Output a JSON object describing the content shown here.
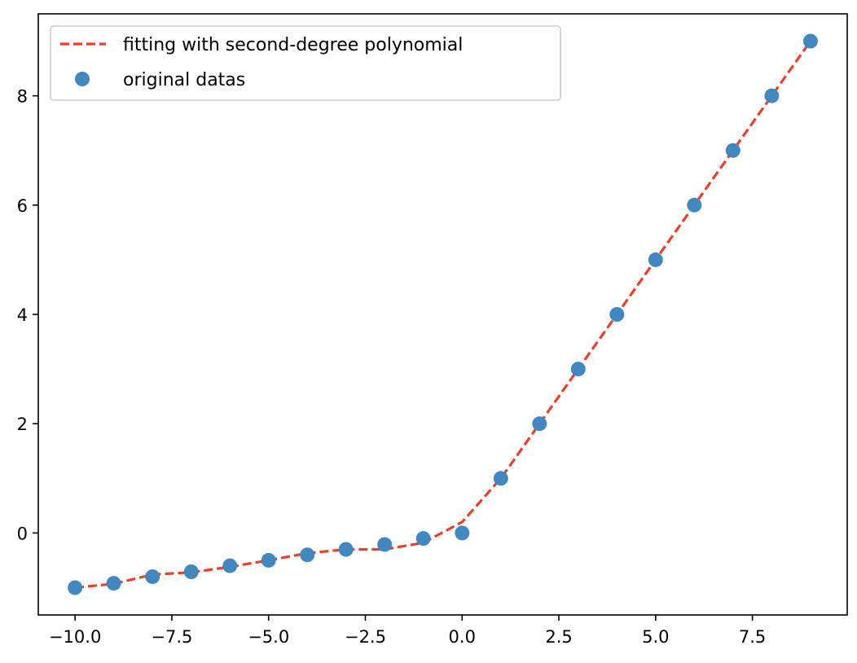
{
  "chart_data": {
    "type": "scatter",
    "title": "",
    "xlabel": "",
    "ylabel": "",
    "xlim": [
      -10.95,
      9.95
    ],
    "ylim": [
      -1.5,
      9.5
    ],
    "xticks": [
      -10.0,
      -7.5,
      -5.0,
      -2.5,
      0.0,
      2.5,
      5.0,
      7.5
    ],
    "xtick_labels": [
      "−10.0",
      "−7.5",
      "−5.0",
      "−2.5",
      "0.0",
      "2.5",
      "5.0",
      "7.5"
    ],
    "yticks": [
      0,
      2,
      4,
      6,
      8
    ],
    "ytick_labels": [
      "0",
      "2",
      "4",
      "6",
      "8"
    ],
    "grid": false,
    "legend_position": "top-left",
    "series": [
      {
        "name": "fitting with second-degree polynomial",
        "kind": "line",
        "style": "dashed",
        "color": "#e8402a",
        "x": [
          -10,
          -9,
          -8,
          -7,
          -6,
          -5,
          -4,
          -3,
          -2,
          -1,
          0,
          1,
          2,
          3,
          4,
          5,
          6,
          7,
          8,
          9
        ],
        "y": [
          -1.0,
          -0.93,
          -0.76,
          -0.72,
          -0.62,
          -0.5,
          -0.37,
          -0.3,
          -0.3,
          -0.18,
          0.2,
          1.0,
          2.0,
          3.0,
          4.0,
          5.0,
          6.0,
          7.0,
          8.0,
          9.0
        ]
      },
      {
        "name": "original datas",
        "kind": "scatter",
        "color": "#4387c0",
        "x": [
          -10,
          -9,
          -8,
          -7,
          -6,
          -5,
          -4,
          -3,
          -2,
          -1,
          0,
          1,
          2,
          3,
          4,
          5,
          6,
          7,
          8,
          9
        ],
        "y": [
          -1.0,
          -0.92,
          -0.8,
          -0.71,
          -0.6,
          -0.5,
          -0.4,
          -0.3,
          -0.21,
          -0.1,
          0.0,
          1.0,
          2.0,
          3.0,
          4.0,
          5.0,
          6.0,
          7.0,
          8.0,
          9.0
        ]
      }
    ]
  }
}
